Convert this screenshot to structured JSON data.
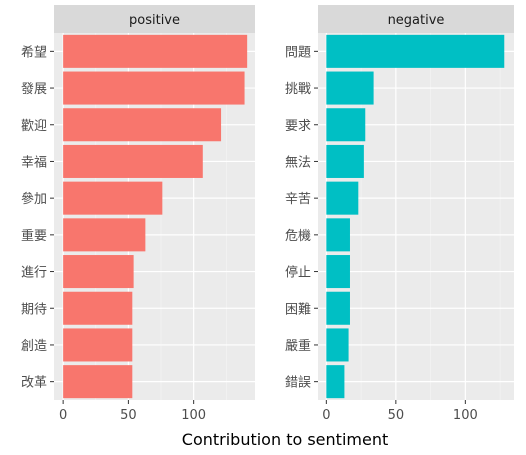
{
  "chart_data": {
    "type": "bar",
    "orientation": "horizontal",
    "facets": [
      "positive",
      "negative"
    ],
    "xlabel": "Contribution to sentiment",
    "xticks": [
      0,
      50,
      100
    ],
    "grid": true,
    "panels": [
      {
        "name": "positive",
        "color": "#F8766D",
        "xlim": [
          -7,
          147
        ],
        "categories": [
          "希望",
          "發展",
          "歡迎",
          "幸福",
          "參加",
          "重要",
          "進行",
          "期待",
          "創造",
          "改革"
        ],
        "values": [
          141,
          139,
          121,
          107,
          76,
          63,
          54,
          53,
          53,
          53
        ]
      },
      {
        "name": "negative",
        "color": "#00BFC4",
        "xlim": [
          -6,
          135
        ],
        "categories": [
          "問題",
          "挑戰",
          "要求",
          "無法",
          "辛苦",
          "危機",
          "停止",
          "困難",
          "嚴重",
          "錯誤"
        ],
        "values": [
          128,
          34,
          28,
          27,
          23,
          17,
          17,
          17,
          16,
          13
        ]
      }
    ]
  }
}
